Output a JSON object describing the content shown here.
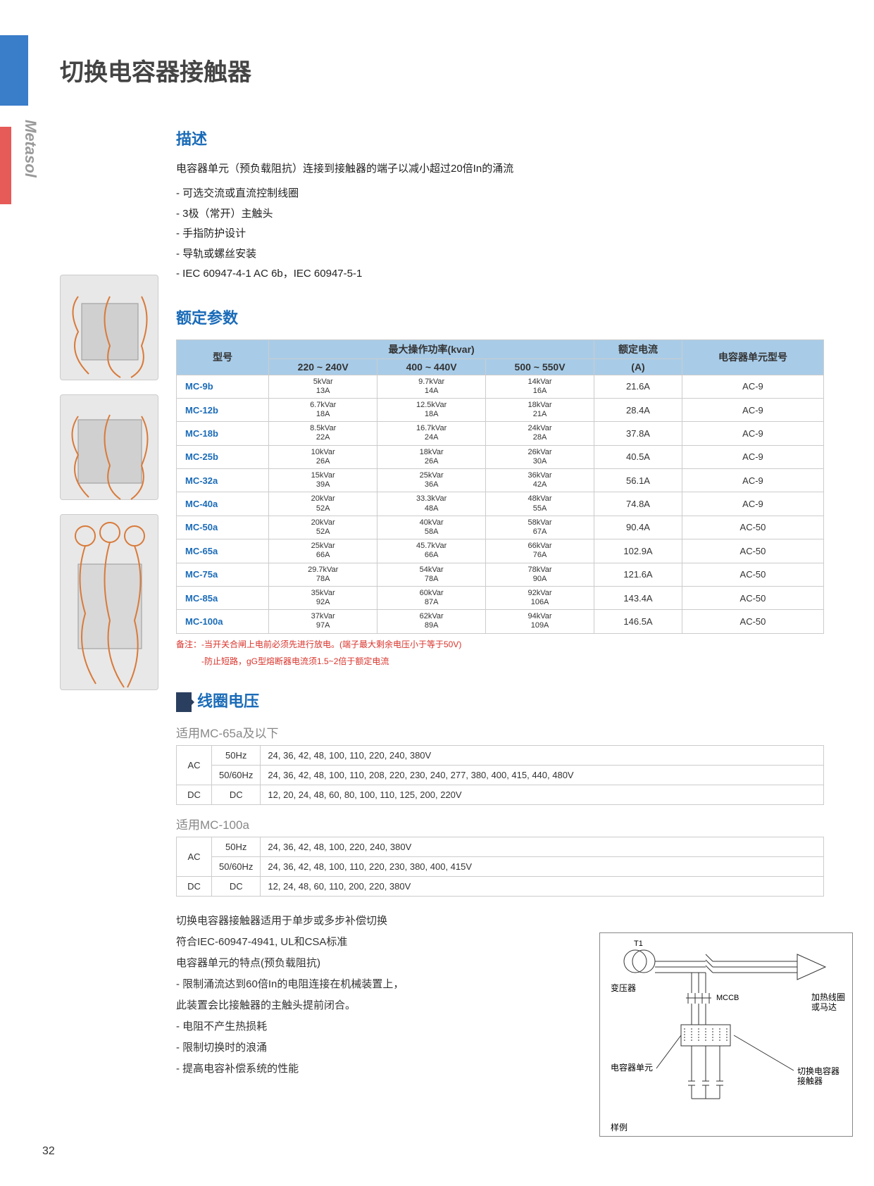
{
  "brand": "Metasol",
  "page_title": "切换电容器接触器",
  "page_number": "32",
  "description": {
    "heading": "描述",
    "intro": "电容器单元（预负载阻抗）连接到接触器的端子以减小超过20倍In的涌流",
    "items": [
      "- 可选交流或直流控制线圈",
      "- 3极（常开）主触头",
      "- 手指防护设计",
      "- 导轨或螺丝安装",
      "- IEC 60947-4-1 AC 6b，IEC 60947-5-1"
    ]
  },
  "ratings": {
    "heading": "额定参数",
    "headers": {
      "model": "型号",
      "max_power": "最大操作功率(kvar)",
      "v220": "220 ~ 240V",
      "v400": "400 ~ 440V",
      "v500": "500 ~ 550V",
      "rated_current": "额定电流",
      "rated_current_unit": "(A)",
      "unit_model": "电容器单元型号"
    },
    "rows": [
      {
        "model": "MC-9b",
        "v220a": "5kVar",
        "v220b": "13A",
        "v400a": "9.7kVar",
        "v400b": "14A",
        "v500a": "14kVar",
        "v500b": "16A",
        "current": "21.6A",
        "unit": "AC-9"
      },
      {
        "model": "MC-12b",
        "v220a": "6.7kVar",
        "v220b": "18A",
        "v400a": "12.5kVar",
        "v400b": "18A",
        "v500a": "18kVar",
        "v500b": "21A",
        "current": "28.4A",
        "unit": "AC-9"
      },
      {
        "model": "MC-18b",
        "v220a": "8.5kVar",
        "v220b": "22A",
        "v400a": "16.7kVar",
        "v400b": "24A",
        "v500a": "24kVar",
        "v500b": "28A",
        "current": "37.8A",
        "unit": "AC-9"
      },
      {
        "model": "MC-25b",
        "v220a": "10kVar",
        "v220b": "26A",
        "v400a": "18kVar",
        "v400b": "26A",
        "v500a": "26kVar",
        "v500b": "30A",
        "current": "40.5A",
        "unit": "AC-9"
      },
      {
        "model": "MC-32a",
        "v220a": "15kVar",
        "v220b": "39A",
        "v400a": "25kVar",
        "v400b": "36A",
        "v500a": "36kVar",
        "v500b": "42A",
        "current": "56.1A",
        "unit": "AC-9"
      },
      {
        "model": "MC-40a",
        "v220a": "20kVar",
        "v220b": "52A",
        "v400a": "33.3kVar",
        "v400b": "48A",
        "v500a": "48kVar",
        "v500b": "55A",
        "current": "74.8A",
        "unit": "AC-9"
      },
      {
        "model": "MC-50a",
        "v220a": "20kVar",
        "v220b": "52A",
        "v400a": "40kVar",
        "v400b": "58A",
        "v500a": "58kVar",
        "v500b": "67A",
        "current": "90.4A",
        "unit": "AC-50"
      },
      {
        "model": "MC-65a",
        "v220a": "25kVar",
        "v220b": "66A",
        "v400a": "45.7kVar",
        "v400b": "66A",
        "v500a": "66kVar",
        "v500b": "76A",
        "current": "102.9A",
        "unit": "AC-50"
      },
      {
        "model": "MC-75a",
        "v220a": "29.7kVar",
        "v220b": "78A",
        "v400a": "54kVar",
        "v400b": "78A",
        "v500a": "78kVar",
        "v500b": "90A",
        "current": "121.6A",
        "unit": "AC-50"
      },
      {
        "model": "MC-85a",
        "v220a": "35kVar",
        "v220b": "92A",
        "v400a": "60kVar",
        "v400b": "87A",
        "v500a": "92kVar",
        "v500b": "106A",
        "current": "143.4A",
        "unit": "AC-50"
      },
      {
        "model": "MC-100a",
        "v220a": "37kVar",
        "v220b": "97A",
        "v400a": "62kVar",
        "v400b": "89A",
        "v500a": "94kVar",
        "v500b": "109A",
        "current": "146.5A",
        "unit": "AC-50"
      }
    ],
    "note1": "备注：-当开关合闸上电前必须先进行放电。(端子最大剩余电压小于等于50V)",
    "note2": "-防止短路，gG型熔断器电流须1.5~2倍于额定电流"
  },
  "coil": {
    "heading": "线圈电压",
    "sub1": "适用MC-65a及以下",
    "tbl1": {
      "ac": "AC",
      "dc": "DC",
      "hz50": "50Hz",
      "hz5060": "50/60Hz",
      "dclbl": "DC",
      "r1": "24, 36, 42, 48, 100, 110, 220, 240, 380V",
      "r2": "24, 36, 42, 48, 100, 110, 208, 220, 230, 240, 277, 380, 400, 415, 440, 480V",
      "r3": "12, 20, 24, 48, 60, 80, 100, 110, 125, 200, 220V"
    },
    "sub2": "适用MC-100a",
    "tbl2": {
      "ac": "AC",
      "dc": "DC",
      "hz50": "50Hz",
      "hz5060": "50/60Hz",
      "dclbl": "DC",
      "r1": "24, 36, 42, 48, 100, 220, 240, 380V",
      "r2": "24, 36, 42, 48, 100, 110, 220, 230, 380, 400, 415V",
      "r3": "12, 24, 48, 60, 110, 200, 220, 380V"
    }
  },
  "bottom": {
    "lines": [
      "切换电容器接触器适用于单步或多步补偿切换",
      "符合IEC-60947-4941, UL和CSA标准",
      "电容器单元的特点(预负载阻抗)",
      "- 限制涌流达到60倍In的电阻连接在机械装置上，",
      "  此装置会比接触器的主触头提前闭合。",
      "- 电阻不产生热损耗",
      "- 限制切换时的浪涌",
      "- 提高电容补偿系统的性能"
    ]
  },
  "diagram": {
    "t1": "T1",
    "transformer": "变压器",
    "mccb": "MCCB",
    "cap_unit": "电容器单元",
    "heater": "加热线圈\n或马达",
    "switch_cap": "切换电容器\n接触器",
    "example": "样例"
  }
}
